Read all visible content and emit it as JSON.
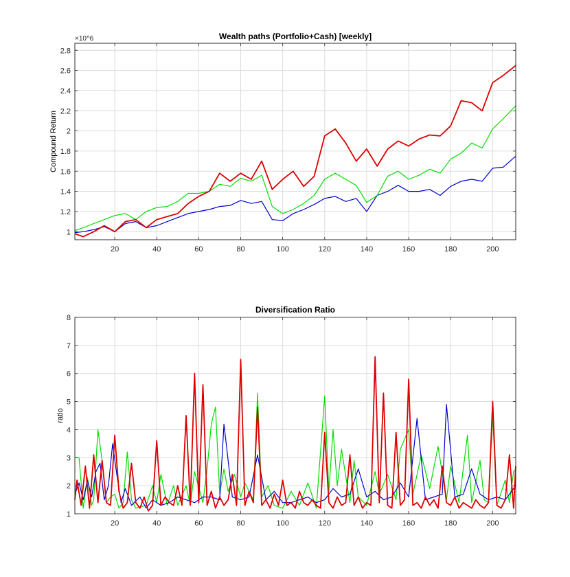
{
  "chart_data": [
    {
      "type": "line",
      "title": "Wealth paths (Portfolio+Cash) [weekly]",
      "ylabel": "Compound Return",
      "xlabel": "",
      "xlim": [
        1,
        211
      ],
      "ylim": [
        0.92,
        2.87
      ],
      "y_exponent_label": "×10^6",
      "y_scale_factor": 1000000,
      "xticks": [
        20,
        40,
        60,
        80,
        100,
        120,
        140,
        160,
        180,
        200
      ],
      "yticks": [
        1,
        1.2,
        1.4,
        1.6,
        1.8,
        2,
        2.2,
        2.4,
        2.6,
        2.8
      ],
      "ytick_labels": [
        "1",
        "1.2",
        "1.4",
        "1.6",
        "1.8",
        "2",
        "2.2",
        "2.4",
        "2.6",
        "2.8"
      ],
      "grid": true,
      "series": [
        {
          "color": "#0000cc",
          "x": [
            1,
            5,
            10,
            15,
            20,
            25,
            30,
            35,
            40,
            45,
            50,
            55,
            60,
            65,
            70,
            75,
            80,
            85,
            90,
            95,
            100,
            105,
            110,
            115,
            120,
            125,
            130,
            135,
            140,
            145,
            150,
            155,
            160,
            165,
            170,
            175,
            180,
            185,
            190,
            195,
            200,
            205,
            211
          ],
          "y": [
            0.99,
            1.0,
            1.02,
            1.05,
            1.0,
            1.08,
            1.1,
            1.04,
            1.06,
            1.1,
            1.14,
            1.18,
            1.2,
            1.22,
            1.25,
            1.26,
            1.31,
            1.28,
            1.3,
            1.12,
            1.11,
            1.18,
            1.22,
            1.27,
            1.33,
            1.35,
            1.3,
            1.33,
            1.2,
            1.36,
            1.4,
            1.46,
            1.4,
            1.4,
            1.42,
            1.36,
            1.45,
            1.5,
            1.52,
            1.5,
            1.63,
            1.64,
            1.75
          ]
        },
        {
          "color": "#00dd00",
          "x": [
            1,
            5,
            10,
            15,
            20,
            25,
            30,
            35,
            40,
            45,
            50,
            55,
            60,
            65,
            70,
            75,
            80,
            85,
            90,
            95,
            100,
            105,
            110,
            115,
            120,
            125,
            130,
            135,
            140,
            145,
            150,
            155,
            160,
            165,
            170,
            175,
            180,
            185,
            190,
            195,
            200,
            205,
            211
          ],
          "y": [
            1.01,
            1.04,
            1.08,
            1.12,
            1.16,
            1.18,
            1.12,
            1.2,
            1.24,
            1.25,
            1.3,
            1.38,
            1.38,
            1.4,
            1.47,
            1.45,
            1.53,
            1.5,
            1.56,
            1.25,
            1.18,
            1.22,
            1.28,
            1.36,
            1.52,
            1.58,
            1.52,
            1.46,
            1.29,
            1.36,
            1.55,
            1.6,
            1.52,
            1.56,
            1.62,
            1.58,
            1.72,
            1.78,
            1.88,
            1.83,
            2.02,
            2.12,
            2.25
          ]
        },
        {
          "color": "#dd0000",
          "x": [
            1,
            5,
            10,
            15,
            20,
            25,
            30,
            35,
            40,
            45,
            50,
            55,
            60,
            65,
            70,
            75,
            80,
            85,
            90,
            95,
            100,
            105,
            110,
            115,
            120,
            125,
            130,
            135,
            140,
            145,
            150,
            155,
            160,
            165,
            170,
            175,
            180,
            185,
            190,
            195,
            200,
            205,
            211
          ],
          "y": [
            0.98,
            0.95,
            1.0,
            1.06,
            1.0,
            1.1,
            1.12,
            1.04,
            1.12,
            1.15,
            1.18,
            1.28,
            1.35,
            1.4,
            1.58,
            1.5,
            1.58,
            1.52,
            1.7,
            1.42,
            1.52,
            1.6,
            1.45,
            1.55,
            1.95,
            2.02,
            1.88,
            1.7,
            1.82,
            1.65,
            1.82,
            1.9,
            1.85,
            1.92,
            1.96,
            1.95,
            2.05,
            2.3,
            2.28,
            2.2,
            2.48,
            2.55,
            2.65
          ]
        }
      ]
    },
    {
      "type": "line",
      "title": "Diversification Ratio",
      "ylabel": "ratio",
      "xlabel": "",
      "xlim": [
        1,
        211
      ],
      "ylim": [
        1,
        8
      ],
      "xticks": [
        20,
        40,
        60,
        80,
        100,
        120,
        140,
        160,
        180,
        200
      ],
      "yticks": [
        1,
        2,
        3,
        4,
        5,
        6,
        7,
        8
      ],
      "ytick_labels": [
        "1",
        "2",
        "3",
        "4",
        "5",
        "6",
        "7",
        "8"
      ],
      "grid": true,
      "series": [
        {
          "color": "#00dd00",
          "x": [
            1,
            3,
            5,
            7,
            9,
            10,
            12,
            14,
            16,
            18,
            20,
            22,
            24,
            26,
            28,
            30,
            35,
            38,
            40,
            42,
            45,
            48,
            50,
            54,
            56,
            58,
            62,
            64,
            66,
            68,
            70,
            72,
            74,
            77,
            80,
            82,
            86,
            88,
            90,
            93,
            96,
            100,
            104,
            108,
            112,
            116,
            118,
            120,
            122,
            124,
            126,
            128,
            132,
            134,
            136,
            140,
            144,
            146,
            150,
            154,
            156,
            160,
            162,
            166,
            170,
            174,
            178,
            180,
            184,
            188,
            190,
            194,
            196,
            198,
            200,
            202,
            206,
            208,
            210,
            211
          ],
          "y": [
            3.0,
            3.0,
            1.2,
            2.3,
            1.3,
            1.5,
            4.0,
            2.9,
            1.4,
            1.6,
            1.7,
            1.2,
            1.4,
            3.2,
            1.5,
            1.2,
            1.3,
            2.0,
            1.4,
            2.4,
            1.3,
            2.0,
            1.3,
            2.0,
            1.3,
            2.5,
            1.4,
            2.6,
            4.2,
            4.8,
            1.7,
            2.6,
            1.8,
            2.4,
            1.6,
            2.1,
            1.5,
            5.3,
            1.6,
            2.0,
            1.3,
            1.2,
            1.8,
            1.3,
            2.1,
            1.2,
            3.2,
            5.2,
            1.8,
            4.0,
            2.0,
            3.3,
            1.4,
            2.9,
            1.6,
            1.3,
            2.5,
            1.7,
            2.4,
            1.5,
            3.3,
            4.0,
            1.7,
            3.1,
            1.9,
            3.4,
            1.5,
            2.7,
            1.4,
            3.8,
            1.4,
            2.9,
            1.5,
            1.4,
            4.5,
            1.3,
            2.2,
            1.4,
            2.5,
            2.6
          ]
        },
        {
          "color": "#0000cc",
          "x": [
            1,
            3,
            5,
            7,
            9,
            11,
            13,
            15,
            17,
            19,
            21,
            23,
            25,
            28,
            32,
            35,
            38,
            42,
            46,
            50,
            54,
            58,
            62,
            66,
            70,
            72,
            76,
            80,
            84,
            88,
            92,
            96,
            100,
            104,
            108,
            112,
            116,
            120,
            124,
            128,
            132,
            136,
            140,
            144,
            148,
            152,
            156,
            160,
            164,
            168,
            172,
            176,
            178,
            182,
            186,
            190,
            194,
            198,
            202,
            206,
            211
          ],
          "y": [
            1.7,
            2.1,
            1.5,
            2.2,
            1.6,
            2.5,
            2.8,
            1.5,
            2.0,
            3.5,
            2.4,
            1.4,
            1.9,
            1.3,
            1.6,
            1.2,
            1.5,
            1.3,
            1.4,
            1.6,
            1.5,
            1.4,
            1.6,
            1.6,
            1.5,
            4.2,
            1.6,
            1.5,
            1.6,
            3.1,
            1.5,
            1.8,
            1.4,
            1.4,
            1.5,
            1.6,
            1.4,
            1.5,
            1.9,
            1.6,
            1.7,
            2.6,
            1.6,
            1.8,
            1.5,
            1.6,
            2.1,
            1.6,
            4.4,
            1.5,
            1.6,
            1.7,
            4.9,
            1.6,
            1.7,
            2.6,
            1.7,
            1.5,
            1.6,
            1.5,
            2.0
          ]
        },
        {
          "color": "#dd0000",
          "x": [
            1,
            2,
            4,
            6,
            8,
            10,
            12,
            14,
            16,
            18,
            20,
            22,
            24,
            26,
            28,
            30,
            32,
            34,
            36,
            38,
            40,
            42,
            44,
            46,
            48,
            50,
            52,
            54,
            56,
            58,
            60,
            62,
            64,
            66,
            68,
            70,
            72,
            74,
            76,
            78,
            80,
            82,
            84,
            86,
            88,
            90,
            92,
            94,
            96,
            98,
            100,
            102,
            104,
            106,
            108,
            110,
            112,
            114,
            116,
            118,
            120,
            122,
            124,
            126,
            128,
            130,
            132,
            134,
            136,
            138,
            140,
            142,
            144,
            146,
            148,
            150,
            152,
            154,
            156,
            158,
            160,
            162,
            164,
            166,
            168,
            170,
            172,
            174,
            176,
            178,
            180,
            182,
            184,
            186,
            188,
            190,
            192,
            194,
            196,
            198,
            200,
            202,
            204,
            206,
            208,
            210,
            211
          ],
          "y": [
            1.5,
            2.2,
            1.3,
            2.7,
            1.2,
            3.1,
            1.4,
            2.9,
            1.4,
            1.3,
            3.8,
            1.8,
            1.2,
            1.4,
            2.8,
            1.4,
            1.2,
            1.6,
            1.1,
            1.3,
            3.6,
            1.3,
            1.6,
            1.4,
            1.3,
            2.0,
            1.3,
            4.5,
            1.3,
            6.0,
            1.4,
            5.6,
            1.3,
            1.8,
            1.2,
            1.6,
            1.3,
            1.5,
            2.4,
            1.3,
            6.5,
            1.3,
            1.8,
            1.4,
            4.8,
            1.3,
            1.5,
            1.2,
            1.7,
            1.3,
            2.2,
            1.3,
            1.4,
            1.2,
            1.8,
            1.4,
            1.3,
            1.5,
            1.3,
            1.2,
            3.9,
            1.4,
            1.2,
            1.6,
            1.3,
            1.4,
            3.1,
            1.3,
            1.6,
            1.2,
            1.4,
            1.3,
            6.6,
            1.4,
            5.3,
            1.3,
            1.2,
            3.9,
            1.3,
            1.5,
            5.8,
            1.3,
            1.4,
            1.2,
            1.6,
            1.3,
            1.5,
            1.2,
            2.7,
            1.4,
            1.3,
            1.6,
            1.2,
            1.4,
            1.3,
            1.2,
            1.5,
            1.3,
            1.2,
            1.4,
            5.0,
            1.3,
            1.2,
            1.5,
            3.1,
            1.2,
            2.7
          ]
        }
      ]
    }
  ]
}
